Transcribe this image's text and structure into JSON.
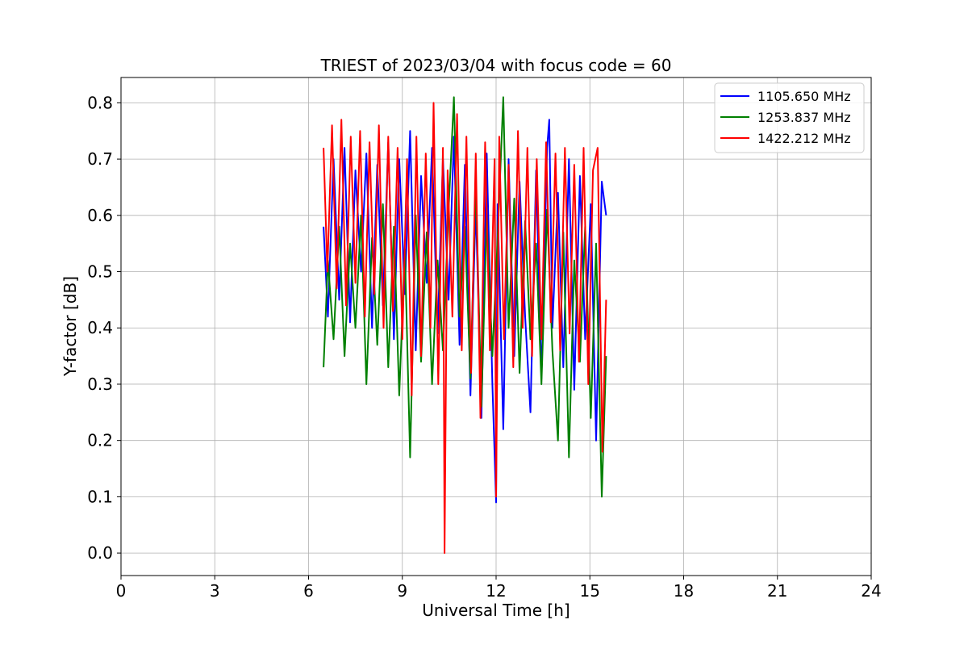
{
  "chart_data": {
    "type": "line",
    "title": "TRIEST of 2023/03/04 with focus code = 60",
    "xlabel": "Universal Time [h]",
    "ylabel": "Y-factor [dB]",
    "xlim": [
      0,
      24
    ],
    "ylim": [
      -0.04,
      0.845
    ],
    "xticks": [
      0,
      3,
      6,
      9,
      12,
      15,
      18,
      21,
      24
    ],
    "yticks": [
      0.0,
      0.1,
      0.2,
      0.3,
      0.4,
      0.5,
      0.6,
      0.7,
      0.8
    ],
    "grid": true,
    "legend_position": "top-right",
    "series": [
      {
        "name": "1105.650 MHz",
        "color": "#0000ff",
        "x": [
          6.48,
          6.62,
          6.8,
          6.98,
          7.15,
          7.33,
          7.5,
          7.68,
          7.85,
          8.03,
          8.2,
          8.38,
          8.55,
          8.73,
          8.9,
          9.08,
          9.25,
          9.43,
          9.6,
          9.78,
          9.95,
          10.13,
          10.3,
          10.48,
          10.65,
          10.83,
          11.0,
          11.18,
          11.35,
          11.53,
          11.7,
          11.88,
          12.0,
          12.05,
          12.23,
          12.4,
          12.58,
          12.75,
          12.93,
          13.1,
          13.28,
          13.45,
          13.63,
          13.7,
          13.8,
          13.98,
          14.15,
          14.33,
          14.5,
          14.68,
          14.85,
          15.03,
          15.2,
          15.38,
          15.52
        ],
        "y": [
          0.58,
          0.42,
          0.7,
          0.45,
          0.72,
          0.41,
          0.68,
          0.5,
          0.71,
          0.4,
          0.69,
          0.44,
          0.73,
          0.38,
          0.7,
          0.46,
          0.75,
          0.36,
          0.67,
          0.48,
          0.72,
          0.39,
          0.7,
          0.45,
          0.74,
          0.37,
          0.69,
          0.28,
          0.62,
          0.24,
          0.71,
          0.3,
          0.09,
          0.62,
          0.22,
          0.7,
          0.35,
          0.66,
          0.42,
          0.25,
          0.68,
          0.31,
          0.72,
          0.77,
          0.4,
          0.64,
          0.33,
          0.7,
          0.29,
          0.67,
          0.38,
          0.62,
          0.2,
          0.66,
          0.6
        ]
      },
      {
        "name": "1253.837 MHz",
        "color": "#008000",
        "x": [
          6.48,
          6.62,
          6.8,
          6.98,
          7.15,
          7.33,
          7.5,
          7.68,
          7.85,
          8.03,
          8.2,
          8.38,
          8.55,
          8.73,
          8.9,
          9.08,
          9.25,
          9.43,
          9.6,
          9.78,
          9.95,
          10.13,
          10.3,
          10.48,
          10.65,
          10.83,
          11.0,
          11.18,
          11.35,
          11.53,
          11.7,
          11.88,
          12.05,
          12.23,
          12.4,
          12.58,
          12.75,
          12.93,
          13.1,
          13.28,
          13.45,
          13.63,
          13.8,
          13.98,
          14.15,
          14.33,
          14.5,
          14.68,
          14.85,
          15.03,
          15.2,
          15.38,
          15.52
        ],
        "y": [
          0.33,
          0.52,
          0.38,
          0.58,
          0.35,
          0.55,
          0.4,
          0.6,
          0.3,
          0.56,
          0.37,
          0.62,
          0.33,
          0.58,
          0.28,
          0.54,
          0.17,
          0.6,
          0.34,
          0.57,
          0.3,
          0.52,
          0.36,
          0.61,
          0.81,
          0.42,
          0.58,
          0.31,
          0.66,
          0.26,
          0.6,
          0.35,
          0.56,
          0.81,
          0.4,
          0.63,
          0.32,
          0.59,
          0.38,
          0.55,
          0.3,
          0.61,
          0.36,
          0.2,
          0.57,
          0.17,
          0.52,
          0.34,
          0.58,
          0.24,
          0.55,
          0.1,
          0.35
        ]
      },
      {
        "name": "1422.212 MHz",
        "color": "#ff0000",
        "x": [
          6.48,
          6.6,
          6.75,
          6.9,
          7.05,
          7.2,
          7.35,
          7.5,
          7.65,
          7.8,
          7.95,
          8.1,
          8.25,
          8.4,
          8.55,
          8.7,
          8.85,
          9.0,
          9.15,
          9.3,
          9.45,
          9.6,
          9.75,
          9.9,
          10.0,
          10.15,
          10.3,
          10.35,
          10.45,
          10.6,
          10.75,
          10.9,
          11.05,
          11.2,
          11.35,
          11.5,
          11.65,
          11.8,
          11.95,
          12.0,
          12.1,
          12.25,
          12.4,
          12.55,
          12.7,
          12.85,
          13.0,
          13.15,
          13.3,
          13.45,
          13.6,
          13.75,
          13.9,
          14.05,
          14.2,
          14.35,
          14.5,
          14.65,
          14.8,
          14.95,
          15.1,
          15.25,
          15.4,
          15.52
        ],
        "y": [
          0.72,
          0.5,
          0.76,
          0.47,
          0.77,
          0.44,
          0.74,
          0.48,
          0.75,
          0.42,
          0.73,
          0.46,
          0.76,
          0.4,
          0.74,
          0.43,
          0.72,
          0.38,
          0.7,
          0.28,
          0.74,
          0.35,
          0.71,
          0.4,
          0.8,
          0.3,
          0.72,
          0.0,
          0.68,
          0.42,
          0.78,
          0.36,
          0.74,
          0.32,
          0.71,
          0.24,
          0.73,
          0.36,
          0.7,
          0.1,
          0.74,
          0.38,
          0.69,
          0.33,
          0.75,
          0.4,
          0.72,
          0.35,
          0.7,
          0.38,
          0.73,
          0.41,
          0.71,
          0.36,
          0.72,
          0.39,
          0.69,
          0.34,
          0.72,
          0.3,
          0.68,
          0.72,
          0.18,
          0.45
        ]
      }
    ]
  }
}
